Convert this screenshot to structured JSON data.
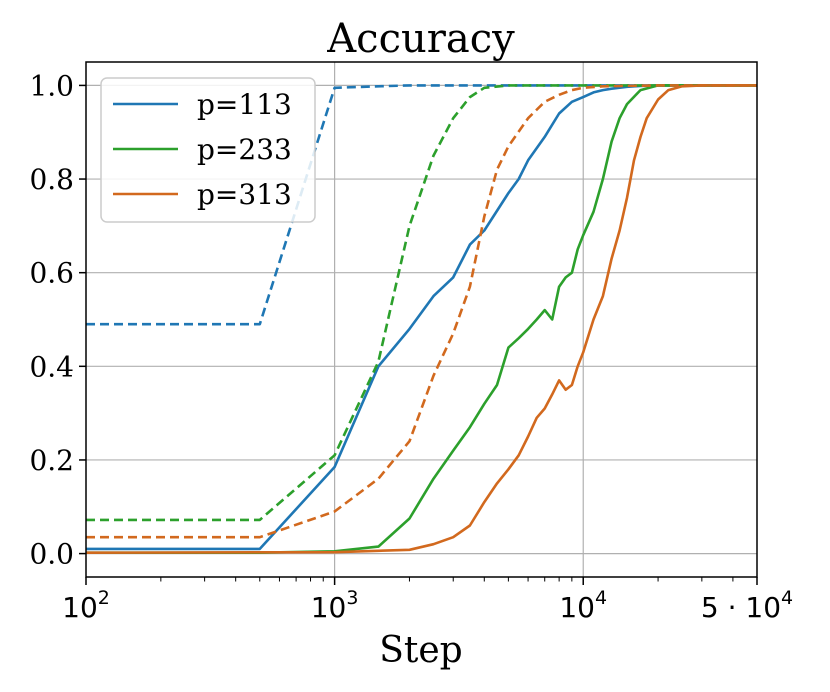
{
  "chart_data": {
    "type": "line",
    "title": "Accuracy",
    "xlabel": "Step",
    "ylabel": "",
    "xscale": "log",
    "xlim": [
      100,
      50000
    ],
    "ylim": [
      -0.05,
      1.05
    ],
    "x_ticks": [
      {
        "value": 100,
        "base": "10",
        "exp": "2"
      },
      {
        "value": 1000,
        "base": "10",
        "exp": "3"
      },
      {
        "value": 10000,
        "base": "10",
        "exp": "4"
      },
      {
        "value": 50000,
        "base": "5 · 10",
        "exp": "4"
      }
    ],
    "y_ticks": [
      "0.0",
      "0.2",
      "0.4",
      "0.6",
      "0.8",
      "1.0"
    ],
    "grid": true,
    "legend_position": "top-left",
    "legend_note": "solid and dashed lines share the color of each p",
    "series": [
      {
        "name": "p=113",
        "color": "#1f77b4",
        "style": "solid",
        "x": [
          100,
          500,
          1000,
          1500,
          2000,
          2500,
          3000,
          3500,
          4000,
          5000,
          5500,
          6000,
          7000,
          8000,
          9000,
          10000,
          11000,
          12000,
          13000,
          15000,
          17000,
          20000,
          30000,
          50000
        ],
        "y": [
          0.01,
          0.01,
          0.185,
          0.4,
          0.48,
          0.55,
          0.59,
          0.66,
          0.69,
          0.77,
          0.8,
          0.84,
          0.89,
          0.94,
          0.965,
          0.975,
          0.985,
          0.99,
          0.993,
          0.997,
          0.999,
          1.0,
          1.0,
          1.0
        ]
      },
      {
        "name": "p=113 (dashed)",
        "color": "#1f77b4",
        "style": "dashed",
        "x": [
          100,
          500,
          1000,
          1500,
          2000,
          5000,
          50000
        ],
        "y": [
          0.49,
          0.49,
          0.995,
          0.998,
          1.0,
          1.0,
          1.0
        ]
      },
      {
        "name": "p=233",
        "color": "#2ca02c",
        "style": "solid",
        "x": [
          100,
          500,
          1000,
          1500,
          2000,
          2500,
          3000,
          3500,
          4000,
          4500,
          5000,
          5500,
          6000,
          6500,
          7000,
          7500,
          8000,
          8500,
          9000,
          9500,
          10000,
          11000,
          12000,
          13000,
          14000,
          15000,
          17000,
          20000,
          30000,
          50000
        ],
        "y": [
          0.002,
          0.002,
          0.005,
          0.015,
          0.075,
          0.16,
          0.22,
          0.27,
          0.32,
          0.36,
          0.44,
          0.46,
          0.48,
          0.5,
          0.52,
          0.5,
          0.57,
          0.59,
          0.6,
          0.65,
          0.68,
          0.73,
          0.8,
          0.88,
          0.93,
          0.96,
          0.99,
          1.0,
          1.0,
          1.0
        ]
      },
      {
        "name": "p=233 (dashed)",
        "color": "#2ca02c",
        "style": "dashed",
        "x": [
          100,
          500,
          1000,
          1500,
          2000,
          2500,
          3000,
          3500,
          4000,
          5000,
          50000
        ],
        "y": [
          0.072,
          0.072,
          0.21,
          0.41,
          0.7,
          0.85,
          0.93,
          0.975,
          0.995,
          1.0,
          1.0
        ]
      },
      {
        "name": "p=313",
        "color": "#d2691e",
        "style": "solid",
        "x": [
          100,
          1000,
          2000,
          2500,
          3000,
          3500,
          4000,
          4500,
          5000,
          5500,
          6000,
          6500,
          7000,
          7500,
          8000,
          8500,
          9000,
          9500,
          10000,
          11000,
          12000,
          13000,
          14000,
          15000,
          16000,
          17000,
          18000,
          20000,
          22000,
          25000,
          30000,
          50000
        ],
        "y": [
          0.002,
          0.003,
          0.008,
          0.02,
          0.035,
          0.06,
          0.11,
          0.15,
          0.18,
          0.21,
          0.25,
          0.29,
          0.31,
          0.34,
          0.37,
          0.35,
          0.36,
          0.4,
          0.43,
          0.5,
          0.55,
          0.63,
          0.69,
          0.76,
          0.84,
          0.89,
          0.93,
          0.97,
          0.99,
          0.998,
          1.0,
          1.0
        ]
      },
      {
        "name": "p=313 (dashed)",
        "color": "#d2691e",
        "style": "dashed",
        "x": [
          100,
          500,
          1000,
          1500,
          2000,
          2500,
          3000,
          3500,
          4000,
          4500,
          5000,
          6000,
          7000,
          8000,
          9000,
          10000,
          12000,
          15000,
          20000,
          50000
        ],
        "y": [
          0.035,
          0.035,
          0.09,
          0.16,
          0.24,
          0.38,
          0.47,
          0.57,
          0.72,
          0.82,
          0.87,
          0.93,
          0.965,
          0.98,
          0.99,
          0.995,
          0.998,
          0.999,
          1.0,
          1.0
        ]
      }
    ],
    "legend": [
      {
        "label": "p=113",
        "color": "#1f77b4"
      },
      {
        "label": "p=233",
        "color": "#2ca02c"
      },
      {
        "label": "p=313",
        "color": "#d2691e"
      }
    ]
  }
}
